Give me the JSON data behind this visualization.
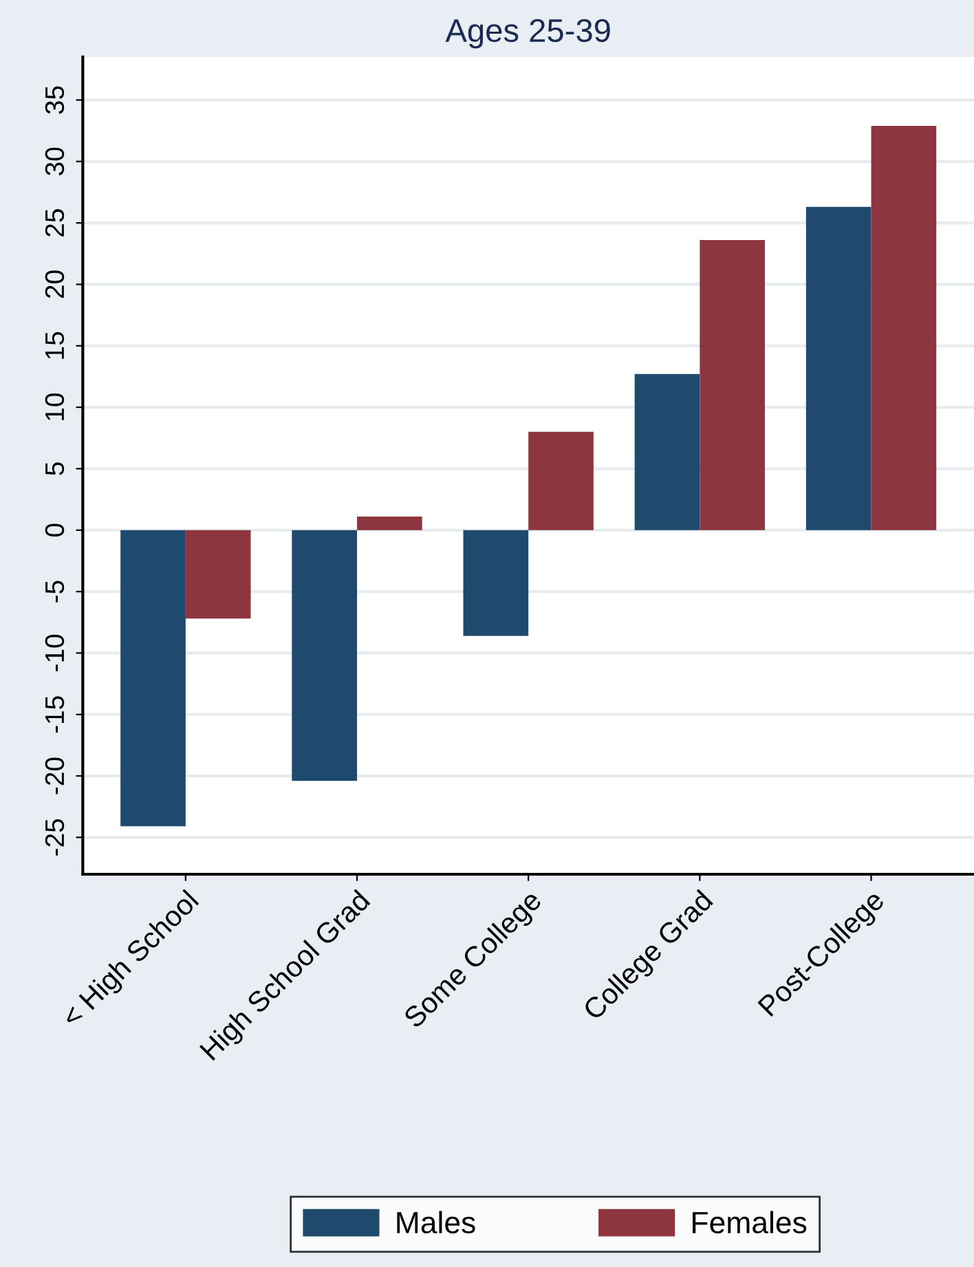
{
  "chart_data": {
    "type": "bar",
    "title": "Ages 25-39",
    "categories": [
      "< High School",
      "High School Grad",
      "Some College",
      "College Grad",
      "Post-College"
    ],
    "series": [
      {
        "name": "Males",
        "color": "#1f4a6e",
        "values": [
          -24.1,
          -20.4,
          -8.6,
          12.7,
          26.3
        ]
      },
      {
        "name": "Females",
        "color": "#8e3640",
        "values": [
          -7.2,
          1.1,
          8.0,
          23.6,
          32.9
        ]
      }
    ],
    "ylim": [
      -28,
      38.5
    ],
    "yticks": [
      -25,
      -20,
      -15,
      -10,
      -5,
      0,
      5,
      10,
      15,
      20,
      25,
      30,
      35
    ],
    "grid": "y",
    "legend": "bottom"
  }
}
